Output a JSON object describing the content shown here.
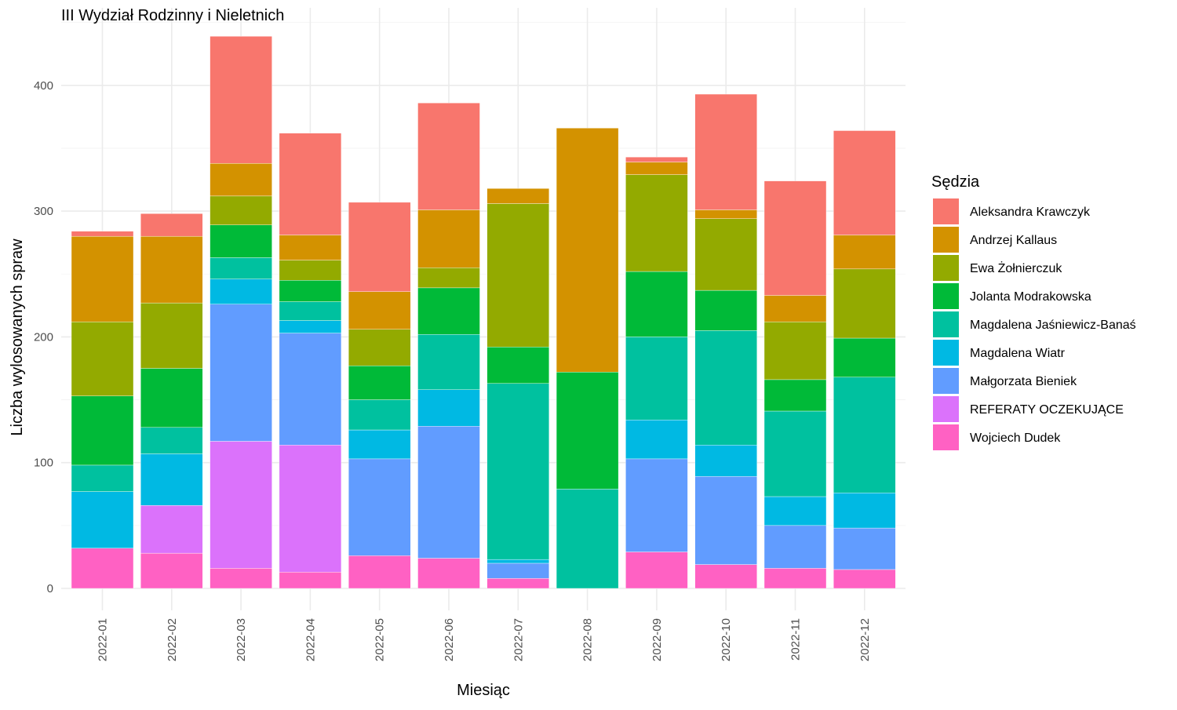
{
  "chart_data": {
    "type": "bar",
    "stacked": true,
    "title": "III Wydział Rodzinny i Nieletnich",
    "xlabel": "Miesiąc",
    "ylabel": "Liczba wylosowanych spraw",
    "ylim": [
      0,
      440
    ],
    "yticks": [
      0,
      100,
      200,
      300,
      400
    ],
    "grid": true,
    "legend_title": "Sędzia",
    "legend_position": "right",
    "categories": [
      "2022-01",
      "2022-02",
      "2022-03",
      "2022-04",
      "2022-05",
      "2022-06",
      "2022-07",
      "2022-08",
      "2022-09",
      "2022-10",
      "2022-11",
      "2022-12"
    ],
    "series": [
      {
        "name": "Aleksandra Krawczyk",
        "color": "#F8766D",
        "values": [
          4,
          18,
          101,
          81,
          71,
          85,
          0,
          0,
          4,
          92,
          91,
          83
        ]
      },
      {
        "name": "Andrzej Kallaus",
        "color": "#D39200",
        "values": [
          68,
          53,
          26,
          20,
          30,
          46,
          12,
          194,
          10,
          7,
          21,
          27
        ]
      },
      {
        "name": "Ewa Żołnierczuk",
        "color": "#93AA00",
        "values": [
          59,
          52,
          23,
          16,
          29,
          16,
          114,
          0,
          77,
          57,
          46,
          55
        ]
      },
      {
        "name": "Jolanta Modrakowska",
        "color": "#00BA38",
        "values": [
          55,
          47,
          26,
          17,
          27,
          37,
          29,
          93,
          52,
          32,
          25,
          31
        ]
      },
      {
        "name": "Magdalena Jaśniewicz-Banaś",
        "color": "#00C19F",
        "values": [
          21,
          21,
          17,
          15,
          24,
          44,
          140,
          79,
          66,
          91,
          68,
          92
        ]
      },
      {
        "name": "Magdalena Wiatr",
        "color": "#00B9E3",
        "values": [
          45,
          41,
          20,
          10,
          23,
          29,
          3,
          0,
          31,
          25,
          23,
          28
        ]
      },
      {
        "name": "Małgorzata Bieniek",
        "color": "#619CFF",
        "values": [
          0,
          0,
          109,
          89,
          77,
          105,
          12,
          0,
          74,
          70,
          34,
          33
        ]
      },
      {
        "name": "REFERATY OCZEKUJĄCE",
        "color": "#DB72FB",
        "values": [
          0,
          38,
          101,
          101,
          0,
          0,
          0,
          0,
          0,
          0,
          0,
          0
        ]
      },
      {
        "name": "Wojciech Dudek",
        "color": "#FF61C3",
        "values": [
          32,
          28,
          16,
          13,
          26,
          24,
          8,
          0,
          29,
          19,
          16,
          15
        ]
      }
    ]
  }
}
